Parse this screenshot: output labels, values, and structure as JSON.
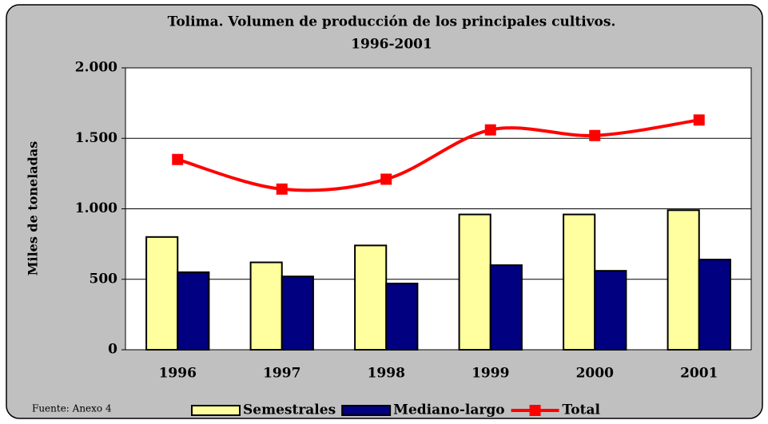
{
  "chart_data": {
    "type": "bar-line",
    "title": "Tolima. Volumen de producción de los principales cultivos.",
    "subtitle": "1996-2001",
    "ylabel": "Miles de toneladas",
    "source": "Fuente: Anexo 4",
    "categories": [
      "1996",
      "1997",
      "1998",
      "1999",
      "2000",
      "2001"
    ],
    "series": [
      {
        "name": "Semestrales",
        "color": "#ffffa0",
        "type": "bar",
        "values": [
          800,
          620,
          740,
          960,
          960,
          990
        ]
      },
      {
        "name": "Mediano-largo",
        "color": "#000080",
        "type": "bar",
        "values": [
          550,
          520,
          470,
          600,
          560,
          640
        ]
      },
      {
        "name": "Total",
        "color": "#ff0000",
        "type": "line",
        "values": [
          1350,
          1140,
          1210,
          1560,
          1520,
          1630
        ]
      }
    ],
    "ylim": [
      0,
      2000
    ],
    "yticks": [
      0,
      500,
      {
        "value": 1000,
        "label": "1.000"
      },
      {
        "value": 1500,
        "label": "1.500"
      },
      {
        "value": 2000,
        "label": "2.000"
      }
    ],
    "grid": true
  }
}
